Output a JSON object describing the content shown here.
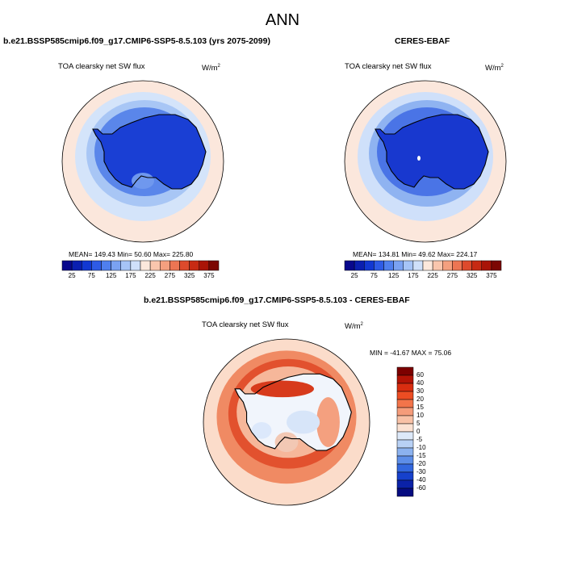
{
  "title": "ANN",
  "panels": [
    {
      "title": "b.e21.BSSP585cmip6.f09_g17.CMIP6-SSP5-8.5.103 (yrs 2075-2099)",
      "variable": "TOA clearsky net SW flux",
      "units_base": "W/m",
      "units_exp": "2",
      "stats": "MEAN= 149.43  Min=  50.60  Max= 225.80",
      "mean": 149.43,
      "min": 50.6,
      "max": 225.8
    },
    {
      "title": "CERES-EBAF",
      "variable": "TOA clearsky net SW flux",
      "units_base": "W/m",
      "units_exp": "2",
      "stats": "MEAN= 134.81  Min=  49.62  Max= 224.17",
      "mean": 134.81,
      "min": 49.62,
      "max": 224.17
    },
    {
      "title": "b.e21.BSSP585cmip6.f09_g17.CMIP6-SSP5-8.5.103 - CERES-EBAF",
      "variable": "TOA clearsky net SW flux",
      "units_base": "W/m",
      "units_exp": "2",
      "stats": "MIN = -41.67 MAX =  75.06",
      "min": -41.67,
      "max": 75.06
    }
  ],
  "chart_data": {
    "type": "heatmap",
    "projection": "south-polar-stereographic",
    "colorbar_field": {
      "orientation": "horizontal",
      "colors": [
        "#08088c",
        "#0a1fb0",
        "#1238d2",
        "#2e5be6",
        "#4f7fee",
        "#7aa2f2",
        "#a6c4f7",
        "#cfe0fa",
        "#fce8dc",
        "#f9c6ad",
        "#f4a07f",
        "#ec7553",
        "#dd4a2c",
        "#c72a13",
        "#a91407",
        "#7c0703"
      ],
      "tick_labels": [
        "25",
        "75",
        "125",
        "175",
        "225",
        "275",
        "325",
        "375"
      ]
    },
    "colorbar_diff": {
      "orientation": "vertical",
      "colors": [
        "#7c0000",
        "#b31306",
        "#d92d10",
        "#ec4d23",
        "#f2744a",
        "#f59c7a",
        "#f8c1a6",
        "#fbe2d3",
        "#dde9f9",
        "#b8d1f5",
        "#8cb2ef",
        "#5d8ee8",
        "#3267de",
        "#1641cc",
        "#0b22a8",
        "#060c80"
      ],
      "tick_labels": [
        "60",
        "40",
        "30",
        "20",
        "15",
        "10",
        "5",
        "0",
        "-5",
        "-10",
        "-15",
        "-20",
        "-30",
        "-40",
        "-60"
      ]
    }
  }
}
